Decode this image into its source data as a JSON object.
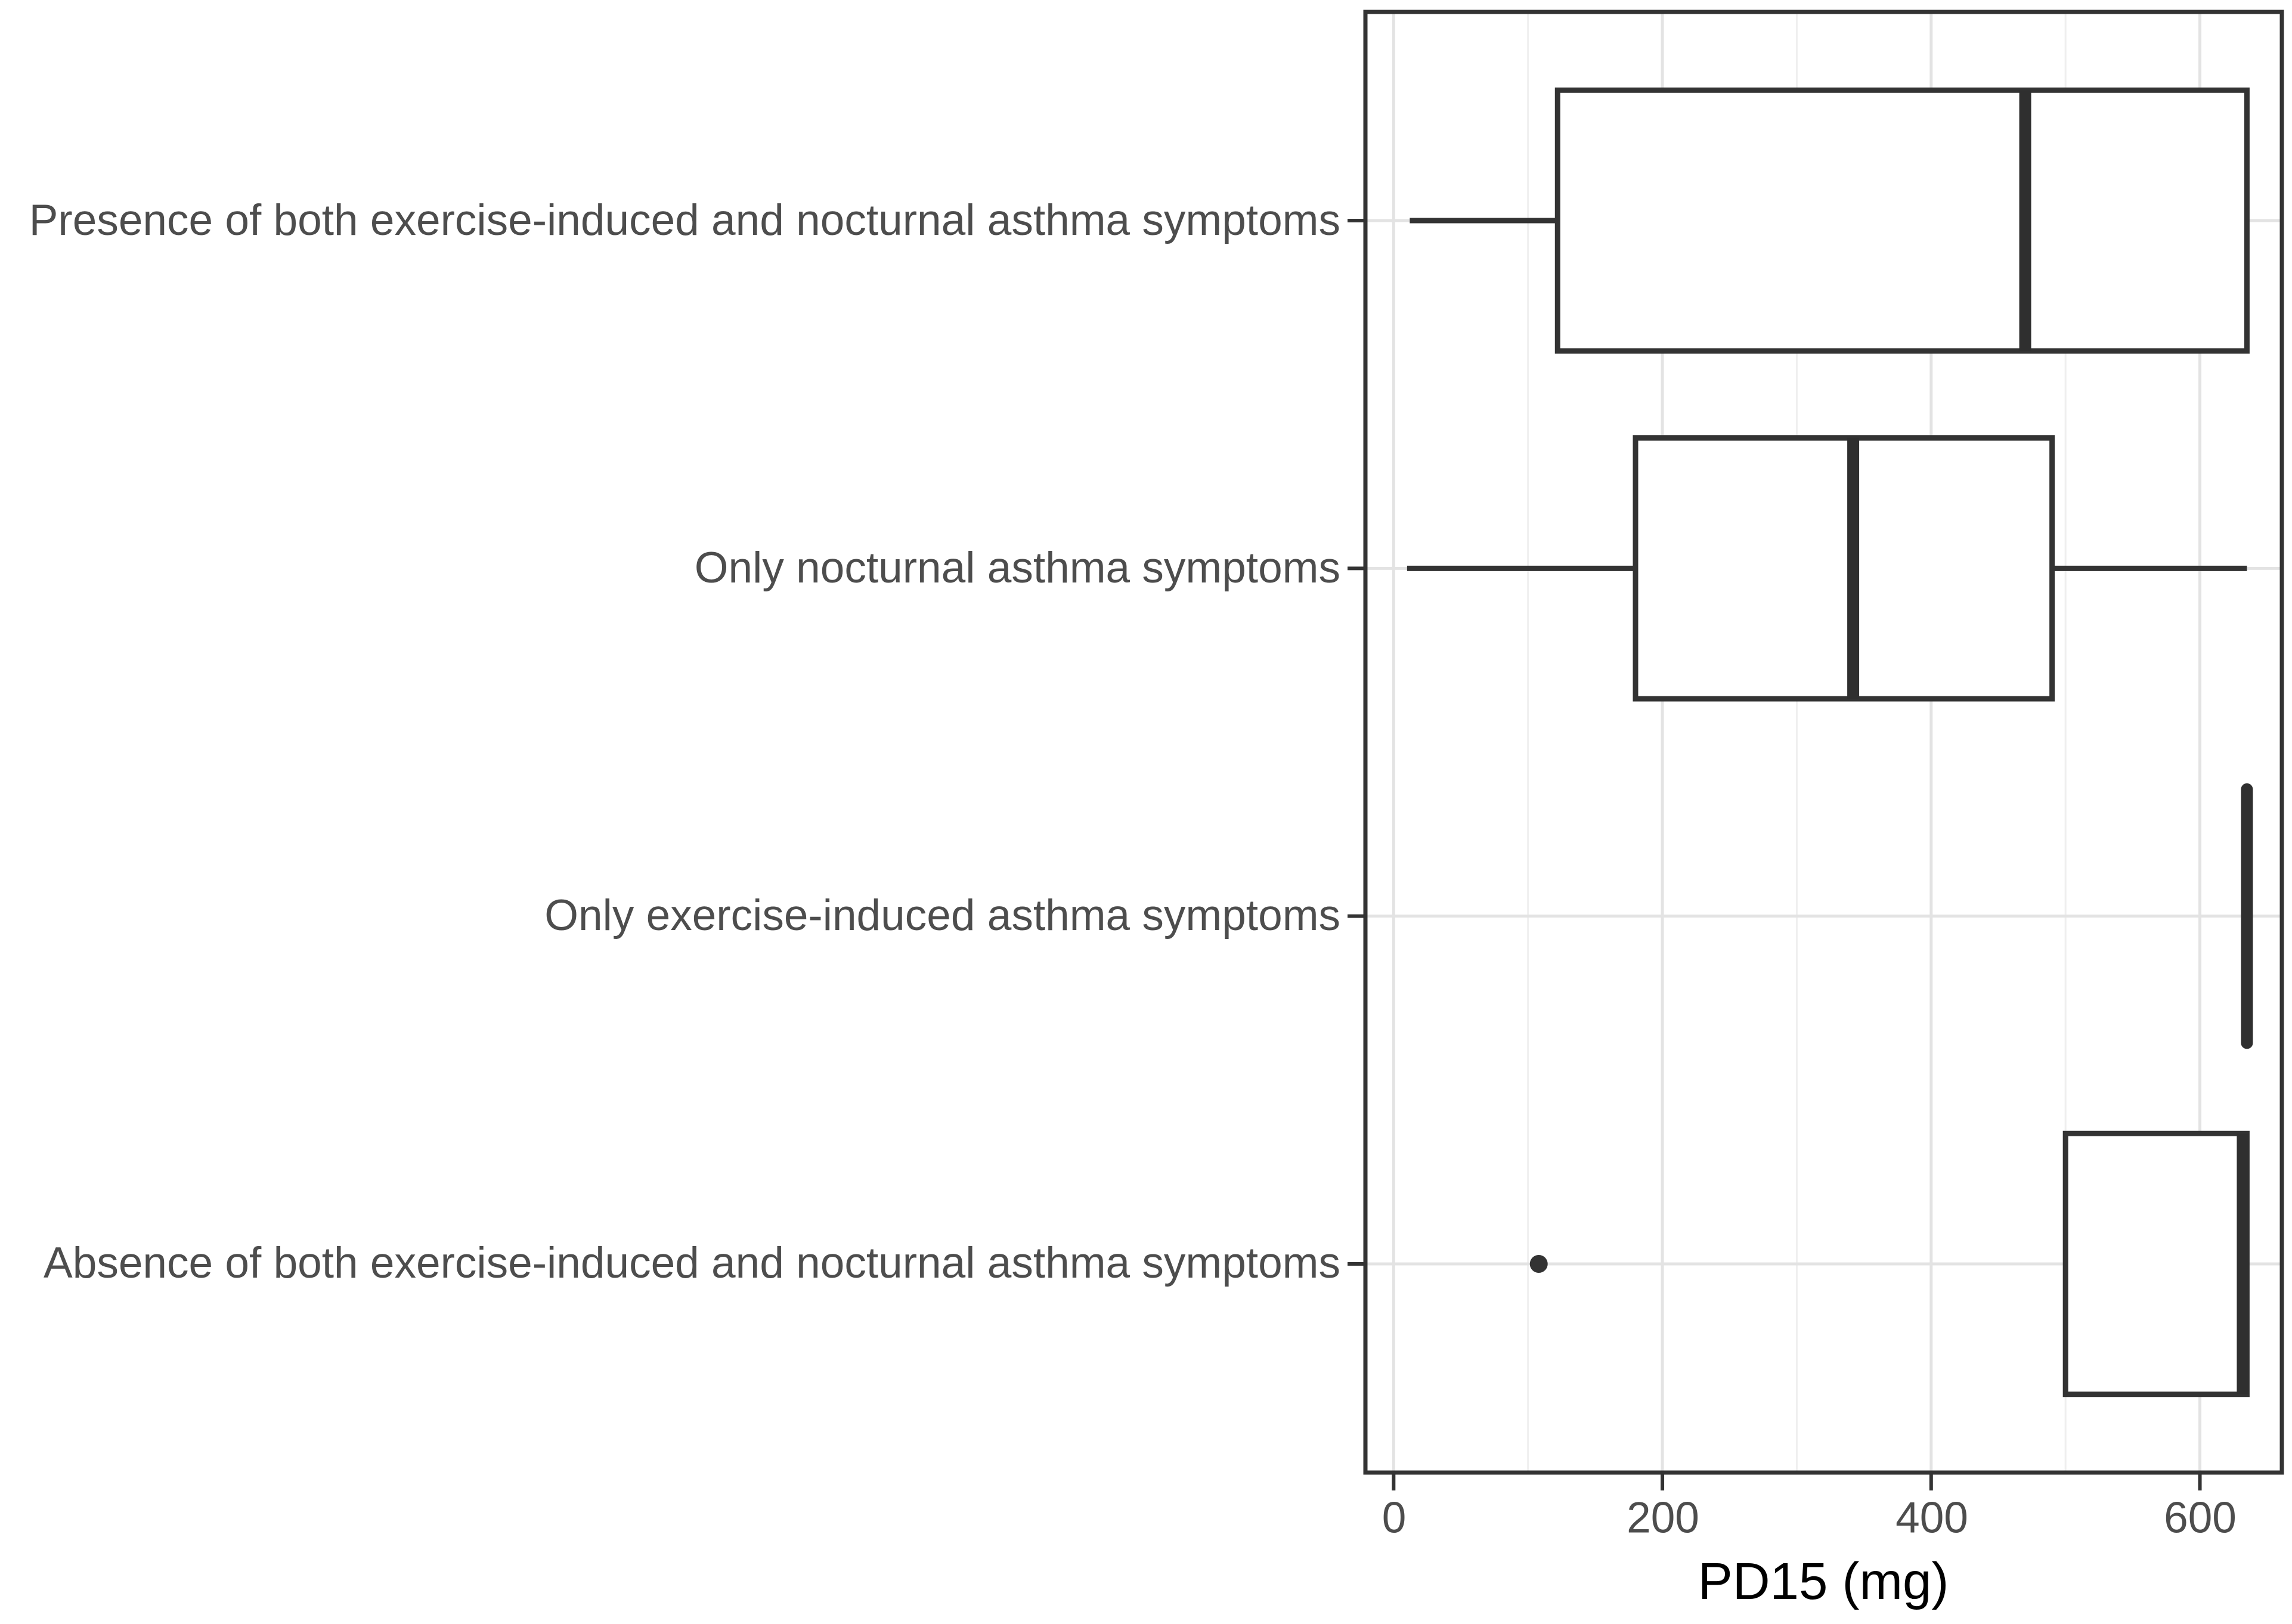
{
  "chart_data": {
    "type": "boxplot",
    "orientation": "horizontal",
    "title": "",
    "xlabel": "PD15 (mg)",
    "ylabel": "",
    "x_ticks": [
      0,
      200,
      400,
      600
    ],
    "x_tick_labels": [
      "0",
      "200",
      "400",
      "600"
    ],
    "xlim": [
      -21,
      661
    ],
    "legend": "none",
    "grid": {
      "vertical_major_at": [
        0,
        200,
        400,
        600
      ],
      "vertical_minor_at": [
        100,
        300,
        500
      ],
      "horizontal_major_at_category_centers": true,
      "panel_border": true
    },
    "categories": [
      "Presence of both exercise-induced and nocturnal asthma symptoms",
      "Only nocturnal asthma symptoms",
      "Only exercise-induced asthma symptoms",
      "Absence of both exercise-induced and nocturnal asthma symptoms"
    ],
    "boxes": [
      {
        "category": "Presence of both exercise-induced and nocturnal asthma symptoms",
        "min": 12,
        "q1": 122,
        "median": 470,
        "q3": 635,
        "max": 635,
        "outliers": []
      },
      {
        "category": "Only nocturnal asthma symptoms",
        "min": 10,
        "q1": 180,
        "median": 342,
        "q3": 490,
        "max": 635,
        "outliers": []
      },
      {
        "category": "Only exercise-induced asthma symptoms",
        "min": 635,
        "q1": 635,
        "median": 635,
        "q3": 635,
        "max": 635,
        "outliers": []
      },
      {
        "category": "Absence of both exercise-induced and nocturnal asthma symptoms",
        "min": 500,
        "q1": 500,
        "median": 635,
        "q3": 635,
        "max": 635,
        "outliers": [
          108
        ]
      }
    ],
    "colors": {
      "box_stroke": "#333333",
      "box_fill": "#ffffff",
      "median": "#2f2f2f",
      "outlier": "#333333",
      "grid_major": "#e3e3e3",
      "grid_minor": "#efefef",
      "panel_border": "#333333",
      "axis_text": "#4d4d4d",
      "axis_title": "#000000",
      "background": "#ffffff"
    }
  }
}
